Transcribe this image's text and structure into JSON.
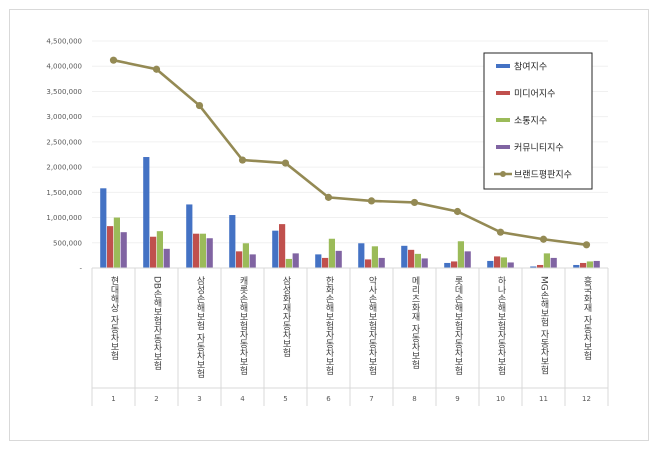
{
  "chart_data": {
    "type": "bar",
    "categories": [
      "현대해상 자동차보험",
      "DB손해보험자동차보험",
      "삼성손해보험 자동차보험",
      "캐롯손해보험자동차보험",
      "삼성화재자동차보험",
      "한화손해보험자동차보험",
      "악사손해보험자동차보험",
      "메리츠화재 자동차보험",
      "롯데손해보험자동차보험",
      "하나손해보험자동차보험",
      "MG손해보험 자동차보험",
      "흥국화재 자동차보험"
    ],
    "index_labels": [
      "1",
      "2",
      "3",
      "4",
      "5",
      "6",
      "7",
      "8",
      "9",
      "10",
      "11",
      "12"
    ],
    "series": [
      {
        "name": "참여지수",
        "color": "#4472c4",
        "type": "bar",
        "values": [
          1580000,
          2200000,
          1260000,
          1050000,
          740000,
          270000,
          490000,
          440000,
          100000,
          140000,
          30000,
          60000
        ]
      },
      {
        "name": "미디어지수",
        "color": "#c0504d",
        "type": "bar",
        "values": [
          830000,
          620000,
          680000,
          330000,
          870000,
          200000,
          170000,
          360000,
          130000,
          230000,
          60000,
          100000
        ]
      },
      {
        "name": "소통지수",
        "color": "#9bbb59",
        "type": "bar",
        "values": [
          1000000,
          730000,
          680000,
          490000,
          180000,
          580000,
          430000,
          280000,
          530000,
          210000,
          290000,
          130000
        ]
      },
      {
        "name": "커뮤니티지수",
        "color": "#8064a2",
        "type": "bar",
        "values": [
          710000,
          380000,
          590000,
          270000,
          290000,
          340000,
          200000,
          190000,
          330000,
          110000,
          200000,
          140000
        ]
      },
      {
        "name": "브랜드평판지수",
        "color": "#948a54",
        "type": "line",
        "values": [
          4120000,
          3940000,
          3220000,
          2140000,
          2080000,
          1400000,
          1330000,
          1300000,
          1120000,
          710000,
          570000,
          460000
        ]
      }
    ],
    "y_ticks": [
      "-",
      "500,000",
      "1,000,000",
      "1,500,000",
      "2,000,000",
      "2,500,000",
      "3,000,000",
      "3,500,000",
      "4,000,000",
      "4,500,000"
    ],
    "ylim": [
      0,
      4500000
    ],
    "legend_position": "top-right",
    "title": "",
    "xlabel": "",
    "ylabel": ""
  }
}
